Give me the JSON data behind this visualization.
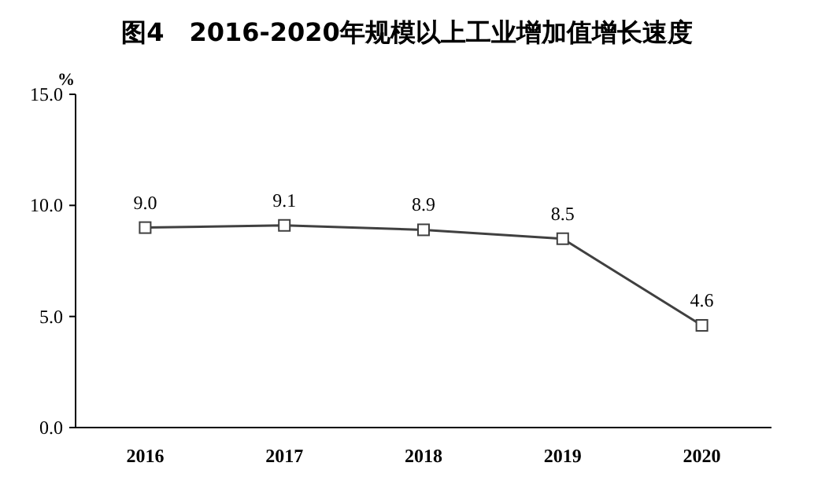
{
  "chart_data": {
    "type": "line",
    "title": "图4　2016-2020年规模以上工业增加值增长速度",
    "ylabel": "%",
    "categories": [
      "2016",
      "2017",
      "2018",
      "2019",
      "2020"
    ],
    "series": [
      {
        "color": "#404040",
        "values": [
          9.0,
          9.1,
          8.9,
          8.5,
          4.6
        ],
        "value_labels": [
          "9.0",
          "9.1",
          "8.9",
          "8.5",
          "4.6"
        ]
      }
    ],
    "ylim": [
      0,
      15
    ],
    "yticks": [
      {
        "value": 0,
        "label": "0.0"
      },
      {
        "value": 5,
        "label": "5.0"
      },
      {
        "value": 10,
        "label": "10.0"
      },
      {
        "value": 15,
        "label": "15.0"
      }
    ],
    "marker": "square",
    "line_style": "solid",
    "grid": false
  }
}
